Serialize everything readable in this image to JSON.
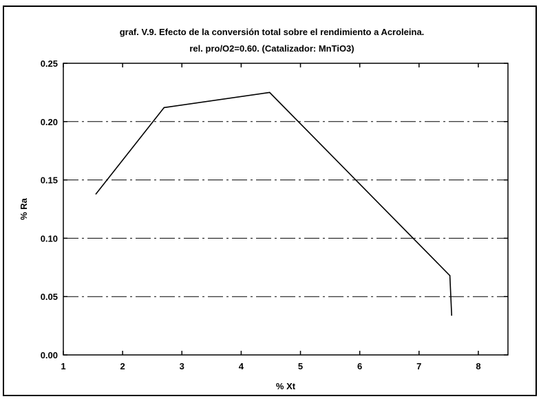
{
  "chart_data": {
    "type": "line",
    "title": "graf. V.9. Efecto de la conversión total sobre el rendimiento a Acroleina.",
    "subtitle": "rel. pro/O2=0.60. (Catalizador: MnTiO3)",
    "xlabel": "% Xt",
    "ylabel": "% Ra",
    "xlim": [
      1,
      8.5
    ],
    "ylim": [
      0,
      0.25
    ],
    "x_ticks": [
      "1",
      "2",
      "3",
      "4",
      "5",
      "6",
      "7",
      "8"
    ],
    "y_ticks": [
      "0.00",
      "0.05",
      "0.10",
      "0.15",
      "0.20",
      "0.25"
    ],
    "grid": "horizontal dash-dot lines at 0.05, 0.10, 0.15, 0.20",
    "legend": "none",
    "x": [
      1.55,
      2.7,
      4.48,
      7.52,
      7.55
    ],
    "y": [
      0.138,
      0.212,
      0.225,
      0.068,
      0.034
    ],
    "line_color": "#000000"
  }
}
